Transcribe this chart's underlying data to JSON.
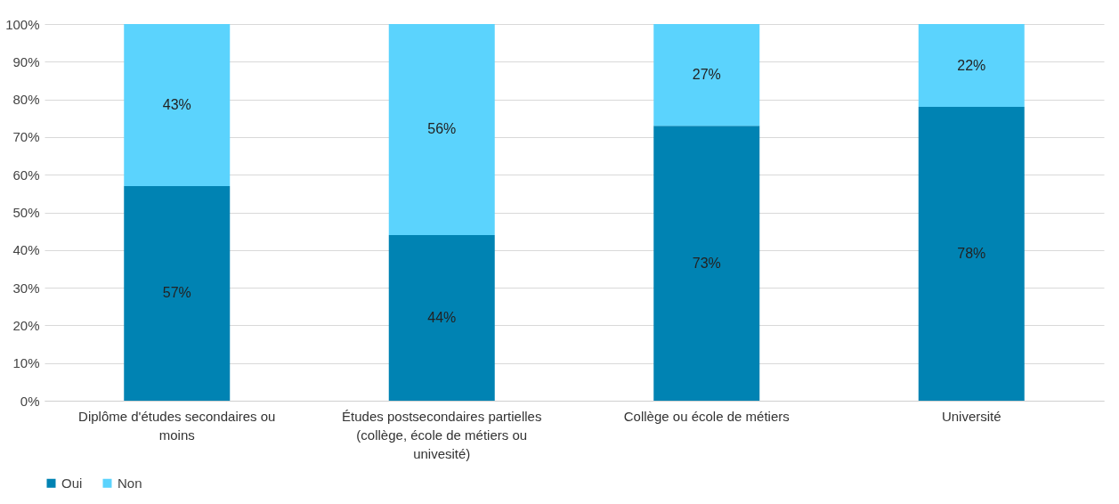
{
  "chart_data": {
    "type": "bar",
    "stacked": true,
    "categories": [
      "Diplôme d'études secondaires ou moins",
      "Études postsecondaires partielles (collège, école de métiers ou univesité)",
      "Collège ou école de métiers",
      "Université"
    ],
    "series": [
      {
        "name": "Oui",
        "color": "#0083b3",
        "values": [
          57,
          44,
          73,
          78
        ],
        "value_labels": [
          "57%",
          "44%",
          "73%",
          "78%"
        ]
      },
      {
        "name": "Non",
        "color": "#5bd3fd",
        "values": [
          43,
          56,
          27,
          22
        ],
        "value_labels": [
          "43%",
          "56%",
          "27%",
          "22%"
        ]
      }
    ],
    "ylim": [
      0,
      100
    ],
    "yticks": [
      {
        "value": 0,
        "label": "0%"
      },
      {
        "value": 10,
        "label": "10%"
      },
      {
        "value": 20,
        "label": "20%"
      },
      {
        "value": 30,
        "label": "30%"
      },
      {
        "value": 40,
        "label": "40%"
      },
      {
        "value": 50,
        "label": "50%"
      },
      {
        "value": 60,
        "label": "60%"
      },
      {
        "value": 70,
        "label": "70%"
      },
      {
        "value": 80,
        "label": "80%"
      },
      {
        "value": 90,
        "label": "90%"
      },
      {
        "value": 100,
        "label": "100%"
      }
    ],
    "grid": "y",
    "legend": "bottom"
  }
}
